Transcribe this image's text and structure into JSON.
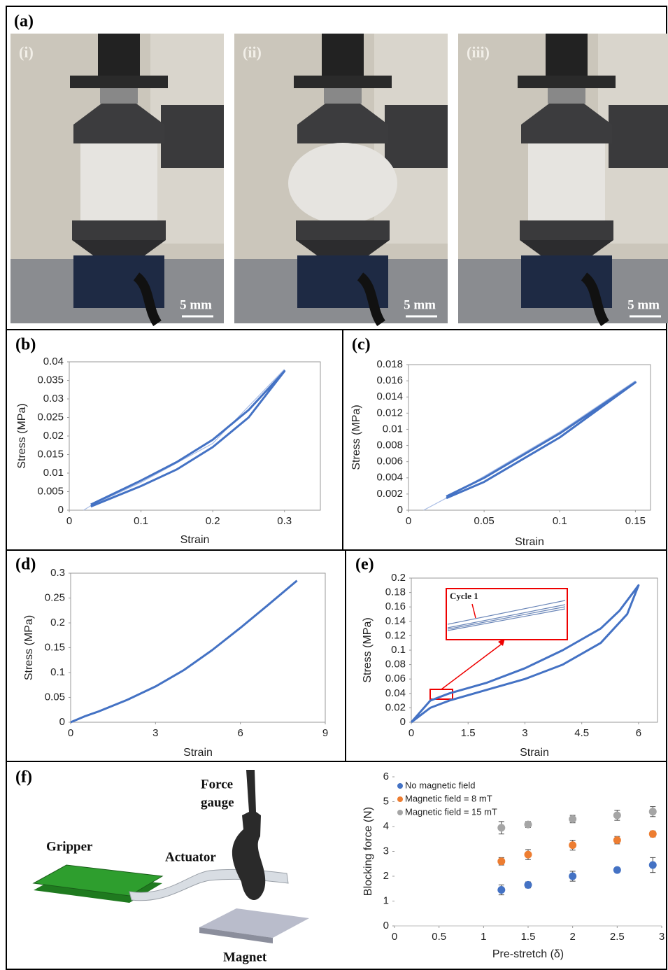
{
  "figure": {
    "panel_labels": [
      "(a)",
      "(b)",
      "(c)",
      "(d)",
      "(e)",
      "(f)"
    ],
    "photo_labels": [
      "(i)",
      "(ii)",
      "(iii)"
    ],
    "scale_bar": "5 mm",
    "diagram": {
      "force": "Force",
      "gauge": "gauge",
      "gripper": "Gripper",
      "actuator": "Actuator",
      "magnet": "Magnet"
    }
  },
  "chart_data": [
    {
      "type": "line",
      "x_label": "Strain",
      "y_label": "Stress (MPa)",
      "xlim": [
        0,
        0.35
      ],
      "xticks": [
        0,
        0.1,
        0.2,
        0.3
      ],
      "ylim": [
        0,
        0.04
      ],
      "yticks": [
        0,
        0.005,
        0.01,
        0.015,
        0.02,
        0.025,
        0.03,
        0.035,
        0.04
      ],
      "series": [
        {
          "color": "#a9bde6",
          "x": [
            0.02,
            0.03,
            0.1,
            0.2,
            0.3
          ],
          "values": [
            0,
            0.0012,
            0.0075,
            0.018,
            0.038
          ]
        },
        {
          "color": "#4472c4",
          "x": [
            0.03,
            0.1,
            0.15,
            0.2,
            0.25,
            0.3,
            0.25,
            0.2,
            0.15,
            0.1,
            0.03
          ],
          "values": [
            0.0015,
            0.008,
            0.013,
            0.019,
            0.027,
            0.0375,
            0.025,
            0.017,
            0.011,
            0.0065,
            0.001
          ]
        }
      ]
    },
    {
      "type": "line",
      "x_label": "Strain",
      "y_label": "Stress (MPa)",
      "xlim": [
        0,
        0.16
      ],
      "xticks": [
        0,
        0.05,
        0.1,
        0.15
      ],
      "ylim": [
        0,
        0.018
      ],
      "yticks": [
        0,
        0.002,
        0.004,
        0.006,
        0.008,
        0.01,
        0.012,
        0.014,
        0.016,
        0.018
      ],
      "series": [
        {
          "color": "#a9bde6",
          "x": [
            0.01,
            0.025,
            0.05,
            0.1,
            0.15
          ],
          "values": [
            0,
            0.0015,
            0.0042,
            0.0097,
            0.016
          ]
        },
        {
          "color": "#4472c4",
          "x": [
            0.025,
            0.05,
            0.1,
            0.15,
            0.1,
            0.05,
            0.025
          ],
          "values": [
            0.0017,
            0.004,
            0.0095,
            0.0158,
            0.009,
            0.0035,
            0.0015
          ]
        }
      ]
    },
    {
      "type": "line",
      "x_label": "Strain",
      "y_label": "Stress (MPa)",
      "xlim": [
        0,
        9
      ],
      "xticks": [
        0,
        3,
        6,
        9
      ],
      "ylim": [
        0,
        0.3
      ],
      "yticks": [
        0,
        0.05,
        0.1,
        0.15,
        0.2,
        0.25,
        0.3
      ],
      "series": [
        {
          "color": "#4472c4",
          "x": [
            0,
            0.5,
            1,
            2,
            3,
            4,
            5,
            6,
            7,
            8
          ],
          "values": [
            0,
            0.012,
            0.022,
            0.045,
            0.072,
            0.105,
            0.145,
            0.19,
            0.237,
            0.285
          ]
        }
      ]
    },
    {
      "type": "line",
      "x_label": "Strain",
      "y_label": "Stress (MPa)",
      "annotation": "Cycle 1",
      "xlim": [
        0,
        6.5
      ],
      "xticks": [
        0,
        1.5,
        3,
        4.5,
        6
      ],
      "ylim": [
        0,
        0.2
      ],
      "yticks": [
        0,
        0.02,
        0.04,
        0.06,
        0.08,
        0.1,
        0.12,
        0.14,
        0.16,
        0.18,
        0.2
      ],
      "series": [
        {
          "color": "#4472c4",
          "x": [
            0,
            0.5,
            1,
            2,
            3,
            4,
            5,
            5.5,
            6,
            5.7,
            5,
            4,
            3,
            2,
            1,
            0.5,
            0
          ],
          "values": [
            0,
            0.03,
            0.04,
            0.055,
            0.075,
            0.1,
            0.13,
            0.155,
            0.19,
            0.15,
            0.11,
            0.08,
            0.06,
            0.045,
            0.03,
            0.02,
            0
          ]
        }
      ]
    },
    {
      "type": "scatter",
      "x_label": "Pre-stretch (δ)",
      "y_label": "Blocking force (N)",
      "legend": "upper left",
      "xlim": [
        0,
        3
      ],
      "xticks": [
        0,
        0.5,
        1,
        1.5,
        2,
        2.5,
        3
      ],
      "ylim": [
        0,
        6
      ],
      "yticks": [
        0,
        1,
        2,
        3,
        4,
        5,
        6
      ],
      "series": [
        {
          "name": "No magnetic field",
          "color": "#4472c4",
          "x": [
            1.2,
            1.5,
            2,
            2.5,
            2.9
          ],
          "values": [
            1.45,
            1.65,
            2.0,
            2.25,
            2.45
          ],
          "errors": [
            0.2,
            0.12,
            0.2,
            0.08,
            0.3
          ]
        },
        {
          "name": "Magnetic field = 8 mT",
          "color": "#ed7d31",
          "x": [
            1.2,
            1.5,
            2,
            2.5,
            2.9
          ],
          "values": [
            2.6,
            2.87,
            3.25,
            3.45,
            3.7
          ],
          "errors": [
            0.15,
            0.2,
            0.2,
            0.15,
            0.12
          ]
        },
        {
          "name": "Magnetic field = 15 mT",
          "color": "#a5a5a5",
          "x": [
            1.2,
            1.5,
            2,
            2.5,
            2.9
          ],
          "values": [
            3.95,
            4.08,
            4.3,
            4.45,
            4.6
          ],
          "errors": [
            0.25,
            0.12,
            0.15,
            0.2,
            0.2
          ]
        }
      ]
    }
  ]
}
